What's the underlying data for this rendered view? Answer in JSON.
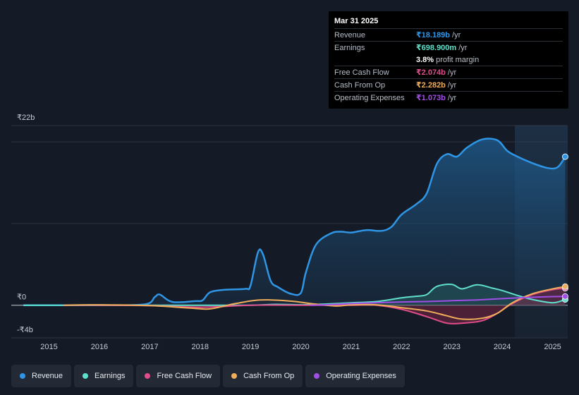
{
  "tooltip": {
    "date": "Mar 31 2025",
    "rows": [
      {
        "label": "Revenue",
        "value": "₹18.189b",
        "unit": "/yr",
        "color": "#2f96e6"
      },
      {
        "label": "Earnings",
        "value": "₹698.900m",
        "unit": "/yr",
        "color": "#5fe0cc"
      },
      {
        "label": "",
        "value": "3.8%",
        "unit": "profit margin",
        "color": "#ffffff"
      },
      {
        "label": "Free Cash Flow",
        "value": "₹2.074b",
        "unit": "/yr",
        "color": "#e14c8a"
      },
      {
        "label": "Cash From Op",
        "value": "₹2.282b",
        "unit": "/yr",
        "color": "#f0ad5a"
      },
      {
        "label": "Operating Expenses",
        "value": "₹1.073b",
        "unit": "/yr",
        "color": "#a14ee6"
      }
    ]
  },
  "legend": [
    {
      "label": "Revenue",
      "color": "#2f96e6"
    },
    {
      "label": "Earnings",
      "color": "#5fe0cc"
    },
    {
      "label": "Free Cash Flow",
      "color": "#e14c8a"
    },
    {
      "label": "Cash From Op",
      "color": "#f0ad5a"
    },
    {
      "label": "Operating Expenses",
      "color": "#a14ee6"
    }
  ],
  "chart_data": {
    "type": "line",
    "title": "",
    "xlabel": "",
    "ylabel": "",
    "ylim": [
      -4,
      22
    ],
    "xlim": [
      2014.25,
      2025.3
    ],
    "y_ticks": [
      {
        "value": 22,
        "label": "₹22b"
      },
      {
        "value": 0,
        "label": "₹0"
      },
      {
        "value": -4,
        "label": "-₹4b"
      }
    ],
    "x_ticks": [
      "2015",
      "2016",
      "2017",
      "2018",
      "2019",
      "2020",
      "2021",
      "2022",
      "2023",
      "2024",
      "2025"
    ],
    "forecast_start": 2024.25,
    "series": [
      {
        "name": "Revenue",
        "color": "#2f96e6",
        "fill": true,
        "x": [
          2014.5,
          2015.0,
          2016.0,
          2016.9,
          2017.1,
          2017.2,
          2017.45,
          2017.9,
          2018.05,
          2018.2,
          2018.5,
          2018.9,
          2019.0,
          2019.15,
          2019.25,
          2019.4,
          2019.55,
          2019.8,
          2020.0,
          2020.1,
          2020.3,
          2020.6,
          2020.8,
          2021.0,
          2021.3,
          2021.6,
          2021.8,
          2022.0,
          2022.3,
          2022.5,
          2022.7,
          2022.9,
          2023.1,
          2023.3,
          2023.6,
          2023.9,
          2024.1,
          2024.3,
          2024.6,
          2024.9,
          2025.1,
          2025.25
        ],
        "values": [
          0.0,
          0.0,
          0.0,
          0.1,
          1.0,
          1.3,
          0.4,
          0.5,
          0.6,
          1.6,
          1.9,
          2.0,
          2.4,
          6.5,
          6.2,
          3.0,
          2.2,
          1.4,
          1.5,
          4.0,
          7.4,
          8.8,
          9.0,
          8.9,
          9.2,
          9.1,
          9.6,
          11.1,
          12.4,
          13.7,
          17.3,
          18.5,
          18.2,
          19.3,
          20.3,
          20.2,
          18.9,
          18.2,
          17.4,
          16.8,
          16.9,
          18.189
        ]
      },
      {
        "name": "Earnings",
        "color": "#5fe0cc",
        "fill": true,
        "x": [
          2014.5,
          2015.0,
          2016.0,
          2017.0,
          2018.0,
          2019.0,
          2019.5,
          2020.0,
          2020.5,
          2021.0,
          2021.5,
          2022.0,
          2022.3,
          2022.5,
          2022.7,
          2023.0,
          2023.2,
          2023.5,
          2023.8,
          2024.0,
          2024.3,
          2024.6,
          2025.0,
          2025.25
        ],
        "values": [
          0.0,
          0.0,
          0.0,
          0.0,
          0.0,
          0.0,
          0.1,
          0.05,
          0.15,
          0.3,
          0.45,
          0.9,
          1.1,
          1.3,
          2.3,
          2.55,
          2.0,
          2.5,
          2.1,
          1.8,
          1.2,
          0.7,
          0.3,
          0.699
        ]
      },
      {
        "name": "Free Cash Flow",
        "color": "#e14c8a",
        "fill": true,
        "x": [
          2015.3,
          2016.0,
          2017.0,
          2018.0,
          2019.0,
          2020.0,
          2020.5,
          2021.0,
          2021.5,
          2022.0,
          2022.5,
          2022.9,
          2023.2,
          2023.6,
          2023.9,
          2024.2,
          2024.6,
          2025.0,
          2025.25
        ],
        "values": [
          0.0,
          0.0,
          -0.05,
          -0.25,
          0.0,
          0.0,
          0.0,
          0.0,
          0.0,
          -0.5,
          -1.4,
          -2.2,
          -2.2,
          -1.9,
          -1.0,
          0.2,
          1.3,
          1.9,
          2.074
        ]
      },
      {
        "name": "Cash From Op",
        "color": "#f0ad5a",
        "fill": false,
        "x": [
          2015.3,
          2016.0,
          2017.0,
          2017.8,
          2018.2,
          2018.7,
          2019.2,
          2019.8,
          2020.2,
          2020.7,
          2021.0,
          2021.5,
          2022.0,
          2022.5,
          2022.9,
          2023.2,
          2023.6,
          2023.9,
          2024.2,
          2024.6,
          2025.0,
          2025.25
        ],
        "values": [
          0.0,
          0.05,
          -0.05,
          -0.35,
          -0.45,
          0.2,
          0.65,
          0.5,
          0.2,
          -0.1,
          0.05,
          0.05,
          -0.3,
          -0.7,
          -1.3,
          -1.7,
          -1.6,
          -1.0,
          0.3,
          1.4,
          2.0,
          2.282
        ]
      },
      {
        "name": "Operating Expenses",
        "color": "#a14ee6",
        "fill": false,
        "x": [
          2020.2,
          2020.5,
          2021.0,
          2021.5,
          2022.0,
          2022.5,
          2023.0,
          2023.5,
          2024.0,
          2024.5,
          2025.0,
          2025.25
        ],
        "values": [
          0.0,
          0.05,
          0.2,
          0.3,
          0.4,
          0.45,
          0.55,
          0.65,
          0.8,
          0.95,
          1.05,
          1.073
        ]
      }
    ]
  }
}
